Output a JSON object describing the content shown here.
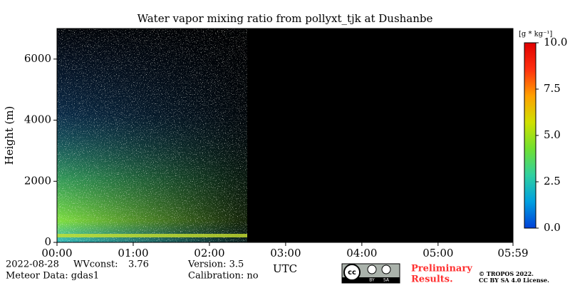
{
  "chart_data": {
    "type": "heatmap",
    "title": "Water vapor mixing ratio from pollyxt_tjk at Dushanbe",
    "ylabel": "Height (m)",
    "xlabel": "UTC",
    "xlim": [
      0,
      359
    ],
    "xticks": [
      {
        "value": 0,
        "label": "00:00"
      },
      {
        "value": 60,
        "label": "01:00"
      },
      {
        "value": 120,
        "label": "02:00"
      },
      {
        "value": 180,
        "label": "03:00"
      },
      {
        "value": 240,
        "label": "04:00"
      },
      {
        "value": 300,
        "label": "05:00"
      },
      {
        "value": 359,
        "label": "05:59"
      }
    ],
    "ylim": [
      0,
      7000
    ],
    "yticks": [
      0,
      2000,
      4000,
      6000
    ],
    "colorbar": {
      "label": "[g * kg⁻¹]",
      "clim": [
        0,
        10
      ],
      "ticks": [
        {
          "value": 0,
          "label": "0.0"
        },
        {
          "value": 2.5,
          "label": "2.5"
        },
        {
          "value": 5,
          "label": "5.0"
        },
        {
          "value": 7.5,
          "label": "7.5"
        },
        {
          "value": 10,
          "label": "10.0"
        }
      ],
      "colormap": [
        "#0040d8",
        "#00a0e0",
        "#30d0a0",
        "#70e030",
        "#d0e000",
        "#ffa000",
        "#ff3010",
        "#e00000"
      ]
    }
  },
  "footer": {
    "date": "2022-08-28",
    "wvconst_label": "WVconst:",
    "wvconst": "3.76",
    "meteor": "Meteor Data: gdas1",
    "version": "Version: 3.5",
    "calibration": "Calibration: no",
    "preliminary": [
      "Preliminary",
      "Results."
    ],
    "license_logo": [
      "BY",
      "SA"
    ],
    "copyright": "© TROPOS 2022.",
    "license": "CC BY SA 4.0 License."
  }
}
